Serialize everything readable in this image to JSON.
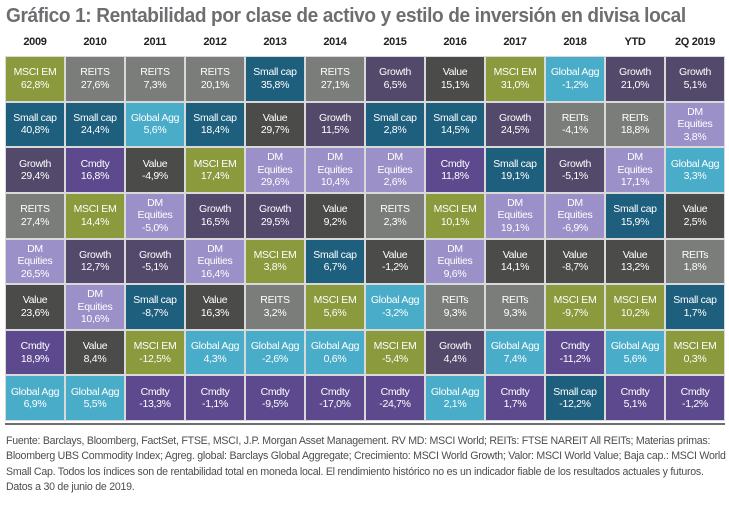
{
  "chart_data": {
    "type": "table",
    "title": "Gráfico 1: Rentabilidad por clase de activo y estilo de inversión en divisa local",
    "columns": [
      "2009",
      "2010",
      "2011",
      "2012",
      "2013",
      "2014",
      "2015",
      "2016",
      "2017",
      "2018",
      "YTD",
      "2Q 2019"
    ],
    "asset_colors": {
      "MSCI EM": "#8a9a3c",
      "REITS": "#7b7d7b",
      "Small cap": "#1e5f7e",
      "Global Agg": "#49adc9",
      "Growth": "#534a6b",
      "Value": "#4b4c4a",
      "Cmdty": "#5d4a8e",
      "DM Equities": "#9b90c8"
    },
    "ranking": [
      [
        {
          "asset": "MSCI EM",
          "label": "MSCI EM",
          "value": "62,8%"
        },
        {
          "asset": "Small cap",
          "label": "Small cap",
          "value": "40,8%"
        },
        {
          "asset": "Growth",
          "label": "Growth",
          "value": "29,4%"
        },
        {
          "asset": "REITS",
          "label": "REITS",
          "value": "27,4%"
        },
        {
          "asset": "DM Equities",
          "label": "DM\nEquities",
          "value": "26,5%"
        },
        {
          "asset": "Value",
          "label": "Value",
          "value": "23,6%"
        },
        {
          "asset": "Cmdty",
          "label": "Cmdty",
          "value": "18,9%"
        },
        {
          "asset": "Global Agg",
          "label": "Global Agg",
          "value": "6,9%"
        }
      ],
      [
        {
          "asset": "REITS",
          "label": "REITS",
          "value": "27,6%"
        },
        {
          "asset": "Small cap",
          "label": "Small cap",
          "value": "24,4%"
        },
        {
          "asset": "Cmdty",
          "label": "Cmdty",
          "value": "16,8%"
        },
        {
          "asset": "MSCI EM",
          "label": "MSCI EM",
          "value": "14,4%"
        },
        {
          "asset": "Growth",
          "label": "Growth",
          "value": "12,7%"
        },
        {
          "asset": "DM Equities",
          "label": "DM\nEquities",
          "value": "10,6%"
        },
        {
          "asset": "Value",
          "label": "Value",
          "value": "8,4%"
        },
        {
          "asset": "Global Agg",
          "label": "Global Agg",
          "value": "5,5%"
        }
      ],
      [
        {
          "asset": "REITS",
          "label": "REITS",
          "value": "7,3%"
        },
        {
          "asset": "Global Agg",
          "label": "Global Agg",
          "value": "5,6%"
        },
        {
          "asset": "Value",
          "label": "Value",
          "value": "-4,9%"
        },
        {
          "asset": "DM Equities",
          "label": "DM\nEquities",
          "value": "-5,0%"
        },
        {
          "asset": "Growth",
          "label": "Growth",
          "value": "-5,1%"
        },
        {
          "asset": "Small cap",
          "label": "Small cap",
          "value": "-8,7%"
        },
        {
          "asset": "MSCI EM",
          "label": "MSCI EM",
          "value": "-12,5%"
        },
        {
          "asset": "Cmdty",
          "label": "Cmdty",
          "value": "-13,3%"
        }
      ],
      [
        {
          "asset": "REITS",
          "label": "REITS",
          "value": "20,1%"
        },
        {
          "asset": "Small cap",
          "label": "Small cap",
          "value": "18,4%"
        },
        {
          "asset": "MSCI EM",
          "label": "MSCI EM",
          "value": "17,4%"
        },
        {
          "asset": "Growth",
          "label": "Growth",
          "value": "16,5%"
        },
        {
          "asset": "DM Equities",
          "label": "DM\nEquities",
          "value": "16,4%"
        },
        {
          "asset": "Value",
          "label": "Value",
          "value": "16,3%"
        },
        {
          "asset": "Global Agg",
          "label": "Global Agg",
          "value": "4,3%"
        },
        {
          "asset": "Cmdty",
          "label": "Cmdty",
          "value": "-1,1%"
        }
      ],
      [
        {
          "asset": "Small cap",
          "label": "Small cap",
          "value": "35,8%"
        },
        {
          "asset": "Value",
          "label": "Value",
          "value": "29,7%"
        },
        {
          "asset": "DM Equities",
          "label": "DM\nEquities",
          "value": "29,6%"
        },
        {
          "asset": "Growth",
          "label": "Growth",
          "value": "29,5%"
        },
        {
          "asset": "MSCI EM",
          "label": "MSCI EM",
          "value": "3,8%"
        },
        {
          "asset": "REITS",
          "label": "REITS",
          "value": "3,2%"
        },
        {
          "asset": "Global Agg",
          "label": "Global Agg",
          "value": "-2,6%"
        },
        {
          "asset": "Cmdty",
          "label": "Cmdty",
          "value": "-9,5%"
        }
      ],
      [
        {
          "asset": "REITS",
          "label": "REITS",
          "value": "27,1%"
        },
        {
          "asset": "Growth",
          "label": "Growth",
          "value": "11,5%"
        },
        {
          "asset": "DM Equities",
          "label": "DM\nEquities",
          "value": "10,4%"
        },
        {
          "asset": "Value",
          "label": "Value",
          "value": "9,2%"
        },
        {
          "asset": "Small cap",
          "label": "Small cap",
          "value": "6,7%"
        },
        {
          "asset": "MSCI EM",
          "label": "MSCI EM",
          "value": "5,6%"
        },
        {
          "asset": "Global Agg",
          "label": "Global Agg",
          "value": "0,6%"
        },
        {
          "asset": "Cmdty",
          "label": "Cmdty",
          "value": "-17,0%"
        }
      ],
      [
        {
          "asset": "Growth",
          "label": "Growth",
          "value": "6,5%"
        },
        {
          "asset": "Small cap",
          "label": "Small cap",
          "value": "2,8%"
        },
        {
          "asset": "DM Equities",
          "label": "DM\nEquities",
          "value": "2,6%"
        },
        {
          "asset": "REITS",
          "label": "REITS",
          "value": "2,3%"
        },
        {
          "asset": "Value",
          "label": "Value",
          "value": "-1,2%"
        },
        {
          "asset": "Global Agg",
          "label": "Global Agg",
          "value": "-3,2%"
        },
        {
          "asset": "MSCI EM",
          "label": "MSCI EM",
          "value": "-5,4%"
        },
        {
          "asset": "Cmdty",
          "label": "Cmdty",
          "value": "-24,7%"
        }
      ],
      [
        {
          "asset": "Value",
          "label": "Value",
          "value": "15,1%"
        },
        {
          "asset": "Small cap",
          "label": "Small cap",
          "value": "14,5%"
        },
        {
          "asset": "Cmdty",
          "label": "Cmdty",
          "value": "11,8%"
        },
        {
          "asset": "MSCI EM",
          "label": "MSCI EM",
          "value": "10,1%"
        },
        {
          "asset": "DM Equities",
          "label": "DM\nEquities",
          "value": "9,6%"
        },
        {
          "asset": "REITS",
          "label": "REITs",
          "value": "9,3%"
        },
        {
          "asset": "Growth",
          "label": "Growth",
          "value": "4,4%"
        },
        {
          "asset": "Global Agg",
          "label": "Global Agg",
          "value": "2,1%"
        }
      ],
      [
        {
          "asset": "MSCI EM",
          "label": "MSCI EM",
          "value": "31,0%"
        },
        {
          "asset": "Growth",
          "label": "Growth",
          "value": "24,5%"
        },
        {
          "asset": "Small cap",
          "label": "Small cap",
          "value": "19,1%"
        },
        {
          "asset": "DM Equities",
          "label": "DM\nEquities",
          "value": "19,1%"
        },
        {
          "asset": "Value",
          "label": "Value",
          "value": "14,1%"
        },
        {
          "asset": "REITS",
          "label": "REITs",
          "value": "9,3%"
        },
        {
          "asset": "Global Agg",
          "label": "Global Agg",
          "value": "7,4%"
        },
        {
          "asset": "Cmdty",
          "label": "Cmdty",
          "value": "1,7%"
        }
      ],
      [
        {
          "asset": "Global Agg",
          "label": "Global Agg",
          "value": "-1,2%"
        },
        {
          "asset": "REITS",
          "label": "REITs",
          "value": "-4,1%"
        },
        {
          "asset": "Growth",
          "label": "Growth",
          "value": "-5,1%"
        },
        {
          "asset": "DM Equities",
          "label": "DM\nEquities",
          "value": "-6,9%"
        },
        {
          "asset": "Value",
          "label": "Value",
          "value": "-8,7%"
        },
        {
          "asset": "MSCI EM",
          "label": "MSCI EM",
          "value": "-9,7%"
        },
        {
          "asset": "Cmdty",
          "label": "Cmdty",
          "value": "-11,2%"
        },
        {
          "asset": "Small cap",
          "label": "Small cap",
          "value": "-12,2%"
        }
      ],
      [
        {
          "asset": "Growth",
          "label": "Growth",
          "value": "21,0%"
        },
        {
          "asset": "REITS",
          "label": "REITs",
          "value": "18,8%"
        },
        {
          "asset": "DM Equities",
          "label": "DM\nEquities",
          "value": "17,1%"
        },
        {
          "asset": "Small cap",
          "label": "Small cap",
          "value": "15,9%"
        },
        {
          "asset": "Value",
          "label": "Value",
          "value": "13,2%"
        },
        {
          "asset": "MSCI EM",
          "label": "MSCI EM",
          "value": "10,2%"
        },
        {
          "asset": "Global Agg",
          "label": "Global Agg",
          "value": "5,6%"
        },
        {
          "asset": "Cmdty",
          "label": "Cmdty",
          "value": "5,1%"
        }
      ],
      [
        {
          "asset": "Growth",
          "label": "Growth",
          "value": "5,1%"
        },
        {
          "asset": "DM Equities",
          "label": "DM\nEquities",
          "value": "3,8%"
        },
        {
          "asset": "Global Agg",
          "label": "Global Agg",
          "value": "3,3%"
        },
        {
          "asset": "Value",
          "label": "Value",
          "value": "2,5%"
        },
        {
          "asset": "REITS",
          "label": "REITs",
          "value": "1,8%"
        },
        {
          "asset": "Small cap",
          "label": "Small cap",
          "value": "1,7%"
        },
        {
          "asset": "MSCI EM",
          "label": "MSCI EM",
          "value": "0,3%"
        },
        {
          "asset": "Cmdty",
          "label": "Cmdty",
          "value": "-1,2%"
        }
      ]
    ]
  },
  "footnote": "Fuente: Barclays, Bloomberg, FactSet, FTSE, MSCI, J.P. Morgan Asset Management. RV MD: MSCI World; REITs: FTSE NAREIT All REITs; Materias primas: Bloomberg UBS Commodity Index; Agreg. global: Barclays Global Aggregate; Crecimiento: MSCI World Growth; Valor: MSCI World Value; Baja cap.: MSCI World Small Cap. Todos los índices son de rentabilidad total en moneda local. El rendimiento histórico no es un indicador fiable de los resultados actuales y futuros. Datos a 30 de junio de 2019."
}
